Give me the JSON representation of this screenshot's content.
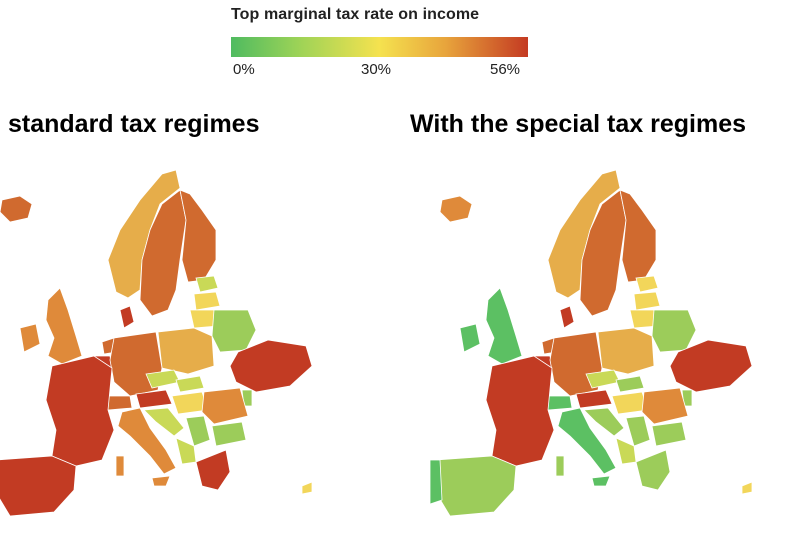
{
  "legend": {
    "title": "Top marginal tax rate on income",
    "ticks": [
      "0%",
      "30%",
      "56%"
    ],
    "gradient_colors": [
      "#4fbb60",
      "#9ad257",
      "#f5e24f",
      "#e8a53c",
      "#c43a22"
    ]
  },
  "panels": [
    {
      "title": "standard tax regimes"
    },
    {
      "title": "With the special tax regimes"
    }
  ],
  "colors": {
    "green": "#5cc063",
    "light_green": "#9ccc5a",
    "yellow_green": "#c9d957",
    "yellow": "#f2d65a",
    "light_orange": "#e6ad4a",
    "orange": "#df8a3a",
    "dark_orange": "#d06a2f",
    "red": "#c23b23"
  }
}
